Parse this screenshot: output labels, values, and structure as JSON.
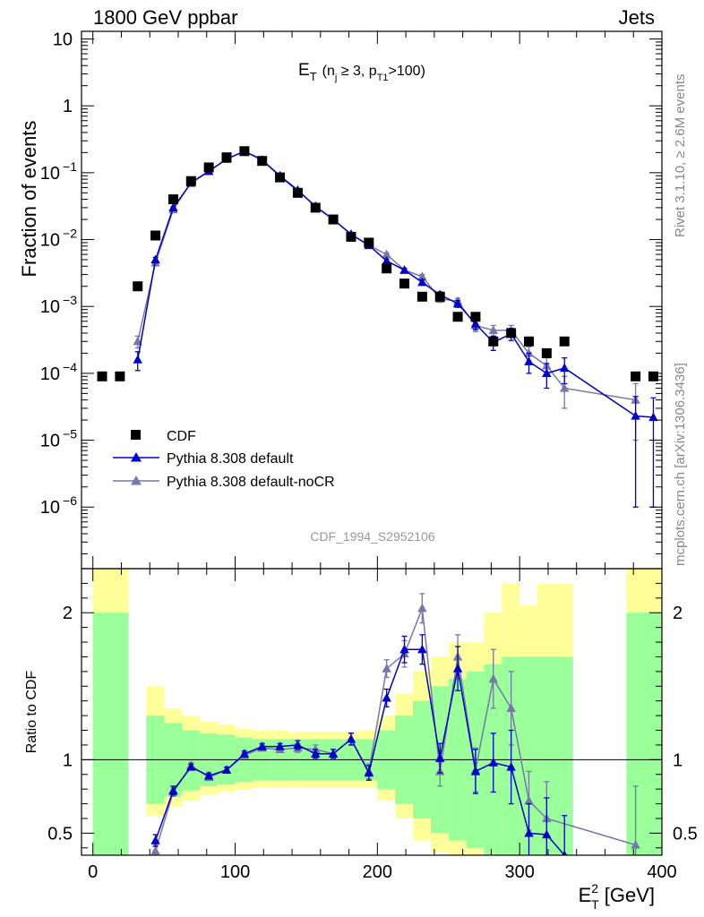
{
  "header": {
    "left": "1800 GeV ppbar",
    "right": "Jets",
    "side_rivet": "Rivet 3.1.10, ≥ 2.6M events",
    "side_mcplots": "mcplots.cern.ch [arXiv:1306.3436]",
    "watermark": "CDF_1994_S2952106"
  },
  "colors": {
    "data": "#000000",
    "default": "#0000cc",
    "nocr": "#7777aa",
    "band_inner": "#99ff99",
    "band_outer": "#ffff99"
  },
  "chart_data": [
    {
      "type": "scatter",
      "panel": "main",
      "title_parts": {
        "main": "E",
        "main_sub": "T",
        "pre": "(n",
        "pre_sub": "j",
        "mid": " ≥ 3, p",
        "mid_sub": "T1",
        "post": ">100)"
      },
      "ylabel": "Fraction of events",
      "yscale": "log",
      "ylim": [
        1.2e-07,
        13
      ],
      "xlim": [
        -8,
        400
      ],
      "yticks": [
        {
          "v": 10,
          "label": "10"
        },
        {
          "v": 1,
          "label": "1"
        },
        {
          "v": 0.1,
          "base": "10",
          "exp": "−1"
        },
        {
          "v": 0.01,
          "base": "10",
          "exp": "−2"
        },
        {
          "v": 0.001,
          "base": "10",
          "exp": "−3"
        },
        {
          "v": 0.0001,
          "base": "10",
          "exp": "−4"
        },
        {
          "v": 1e-05,
          "base": "10",
          "exp": "−5"
        },
        {
          "v": 1e-06,
          "base": "10",
          "exp": "−6"
        }
      ],
      "legend": [
        "CDF",
        "Pythia 8.308 default",
        "Pythia 8.308 default-noCR"
      ],
      "series": [
        {
          "name": "CDF",
          "x": [
            6.5,
            19,
            31.5,
            44,
            56.5,
            69,
            81.5,
            94,
            106.5,
            119,
            131.5,
            144,
            156.5,
            169,
            181.5,
            194,
            206.5,
            219,
            231.5,
            244,
            256.5,
            269,
            281.5,
            294,
            306.5,
            319,
            331.5,
            381.5,
            394
          ],
          "y": [
            9e-05,
            9e-05,
            0.002,
            0.0115,
            0.04,
            0.075,
            0.12,
            0.17,
            0.21,
            0.15,
            0.085,
            0.05,
            0.03,
            0.02,
            0.011,
            0.009,
            0.0037,
            0.0022,
            0.0014,
            0.0014,
            0.0007,
            0.0007,
            0.0003,
            0.0004,
            0.0003,
            0.0002,
            0.0003,
            9e-05,
            9e-05
          ]
        },
        {
          "name": "Pythia 8.308 default",
          "x": [
            31.5,
            44,
            56.5,
            69,
            81.5,
            94,
            106.5,
            119,
            131.5,
            144,
            156.5,
            169,
            181.5,
            194,
            206.5,
            219,
            231.5,
            244,
            256.5,
            269,
            281.5,
            294,
            306.5,
            319,
            331.5,
            381.5,
            394
          ],
          "y": [
            0.00016,
            0.005,
            0.03,
            0.07,
            0.105,
            0.16,
            0.21,
            0.155,
            0.09,
            0.055,
            0.031,
            0.02,
            0.012,
            0.0082,
            0.0048,
            0.0035,
            0.0023,
            0.0015,
            0.0011,
            0.00055,
            0.00029,
            0.00039,
            0.00015,
            0.0001,
            0.00012,
            2.3e-05,
            2.2e-05
          ],
          "err": [
            5e-05,
            0.0004,
            0.001,
            0.002,
            0.003,
            0.004,
            0.004,
            0.003,
            0.002,
            0.0012,
            0.0008,
            0.0005,
            0.0004,
            0.0003,
            0.0003,
            0.0002,
            0.0002,
            0.00015,
            0.00013,
            0.0001,
            7e-05,
            8e-05,
            5e-05,
            4e-05,
            5e-05,
            2.2e-05,
            2.1e-05
          ]
        },
        {
          "name": "Pythia 8.308 default-noCR",
          "x": [
            31.5,
            44,
            56.5,
            69,
            81.5,
            94,
            106.5,
            119,
            131.5,
            144,
            156.5,
            169,
            181.5,
            194,
            206.5,
            219,
            231.5,
            244,
            256.5,
            269,
            281.5,
            294,
            306.5,
            319,
            331.5,
            381.5
          ],
          "y": [
            0.0003,
            0.0045,
            0.028,
            0.072,
            0.105,
            0.16,
            0.21,
            0.155,
            0.088,
            0.053,
            0.032,
            0.02,
            0.012,
            0.0082,
            0.006,
            0.0035,
            0.0028,
            0.0013,
            0.0012,
            0.00052,
            0.00044,
            0.00044,
            0.0002,
            0.00013,
            6e-05,
            4e-05
          ],
          "err": [
            6e-05,
            0.0004,
            0.001,
            0.002,
            0.003,
            0.004,
            0.004,
            0.003,
            0.002,
            0.0012,
            0.0008,
            0.0005,
            0.0004,
            0.0003,
            0.0003,
            0.0002,
            0.0002,
            0.00015,
            0.00013,
            0.0001,
            8e-05,
            8e-05,
            5e-05,
            4e-05,
            3e-05,
            3e-05
          ]
        }
      ]
    },
    {
      "type": "scatter",
      "panel": "ratio",
      "ylabel": "Ratio to CDF",
      "xlabel_parts": {
        "main": "E",
        "sup": "2",
        "sub": "T",
        "post": " [GeV]"
      },
      "xlim": [
        -8,
        400
      ],
      "ylim": [
        0.35,
        2.3
      ],
      "xticks": [
        0,
        100,
        200,
        300,
        400
      ],
      "yticks": [
        0.5,
        1,
        2
      ],
      "bands": {
        "edges": [
          0,
          25,
          37.5,
          50,
          62.5,
          75,
          87.5,
          100,
          112.5,
          125,
          137.5,
          150,
          162.5,
          175,
          187.5,
          200,
          212.5,
          225,
          237.5,
          250,
          262.5,
          275,
          287.5,
          300,
          312.5,
          325,
          337.5,
          375,
          400
        ],
        "inner": [
          [
            0.35,
            2.0
          ],
          null,
          [
            0.7,
            1.3
          ],
          [
            0.75,
            1.25
          ],
          [
            0.79,
            1.2
          ],
          [
            0.82,
            1.18
          ],
          [
            0.83,
            1.17
          ],
          [
            0.85,
            1.15
          ],
          [
            0.86,
            1.14
          ],
          [
            0.86,
            1.14
          ],
          [
            0.86,
            1.14
          ],
          [
            0.86,
            1.14
          ],
          [
            0.86,
            1.14
          ],
          [
            0.86,
            1.14
          ],
          [
            0.86,
            1.14
          ],
          [
            0.8,
            1.2
          ],
          [
            0.7,
            1.3
          ],
          [
            0.6,
            1.4
          ],
          [
            0.5,
            1.5
          ],
          [
            0.45,
            1.55
          ],
          [
            0.4,
            1.6
          ],
          [
            0.35,
            1.65
          ],
          [
            0.35,
            1.7
          ],
          [
            0.35,
            1.7
          ],
          [
            0.35,
            1.7
          ],
          [
            0.35,
            1.7
          ],
          null,
          [
            0.35,
            2.0
          ]
        ],
        "outer": [
          [
            0.35,
            2.3
          ],
          null,
          [
            0.62,
            1.5
          ],
          [
            0.68,
            1.35
          ],
          [
            0.72,
            1.3
          ],
          [
            0.76,
            1.26
          ],
          [
            0.78,
            1.24
          ],
          [
            0.8,
            1.21
          ],
          [
            0.81,
            1.2
          ],
          [
            0.81,
            1.2
          ],
          [
            0.81,
            1.19
          ],
          [
            0.81,
            1.19
          ],
          [
            0.81,
            1.19
          ],
          [
            0.81,
            1.19
          ],
          [
            0.81,
            1.2
          ],
          [
            0.72,
            1.3
          ],
          [
            0.6,
            1.45
          ],
          [
            0.45,
            1.6
          ],
          [
            0.37,
            1.7
          ],
          [
            0.35,
            1.8
          ],
          [
            0.35,
            1.8
          ],
          [
            0.35,
            2.0
          ],
          [
            0.35,
            2.2
          ],
          [
            0.35,
            2.05
          ],
          [
            0.35,
            2.2
          ],
          [
            0.35,
            2.2
          ],
          null,
          [
            0.35,
            2.3
          ]
        ]
      },
      "series": [
        {
          "name": "Pythia 8.308 default",
          "x": [
            44,
            56.5,
            69,
            81.5,
            94,
            106.5,
            119,
            131.5,
            144,
            156.5,
            169,
            181.5,
            194,
            206.5,
            219,
            231.5,
            244,
            256.5,
            269,
            281.5,
            294,
            306.5,
            319,
            331.5
          ],
          "y": [
            0.45,
            0.79,
            0.95,
            0.89,
            0.93,
            1.04,
            1.09,
            1.09,
            1.1,
            1.04,
            1.04,
            1.14,
            0.91,
            1.42,
            1.75,
            1.75,
            1.01,
            1.62,
            0.92,
            0.98,
            0.95,
            0.5,
            0.49,
            0.35
          ],
          "err": [
            0.04,
            0.03,
            0.02,
            0.02,
            0.02,
            0.02,
            0.02,
            0.02,
            0.03,
            0.03,
            0.03,
            0.04,
            0.05,
            0.06,
            0.09,
            0.1,
            0.1,
            0.15,
            0.15,
            0.2,
            0.25,
            0.2,
            0.25,
            0.27
          ]
        },
        {
          "name": "Pythia 8.308 default-noCR",
          "x": [
            44,
            56.5,
            69,
            81.5,
            94,
            106.5,
            119,
            131.5,
            144,
            156.5,
            169,
            181.5,
            194,
            206.5,
            219,
            231.5,
            244,
            256.5,
            269,
            281.5,
            294,
            306.5,
            319,
            381.5
          ],
          "y": [
            0.38,
            0.78,
            0.96,
            0.88,
            0.93,
            1.03,
            1.08,
            1.07,
            1.08,
            1.07,
            1.04,
            1.14,
            0.92,
            1.62,
            1.72,
            2.03,
            0.92,
            1.7,
            0.93,
            1.55,
            1.35,
            0.72,
            0.6,
            0.42
          ],
          "err": [
            0.04,
            0.03,
            0.02,
            0.02,
            0.02,
            0.02,
            0.02,
            0.02,
            0.03,
            0.03,
            0.03,
            0.04,
            0.05,
            0.06,
            0.09,
            0.1,
            0.1,
            0.15,
            0.15,
            0.2,
            0.25,
            0.2,
            0.25,
            0.4
          ]
        }
      ]
    }
  ]
}
